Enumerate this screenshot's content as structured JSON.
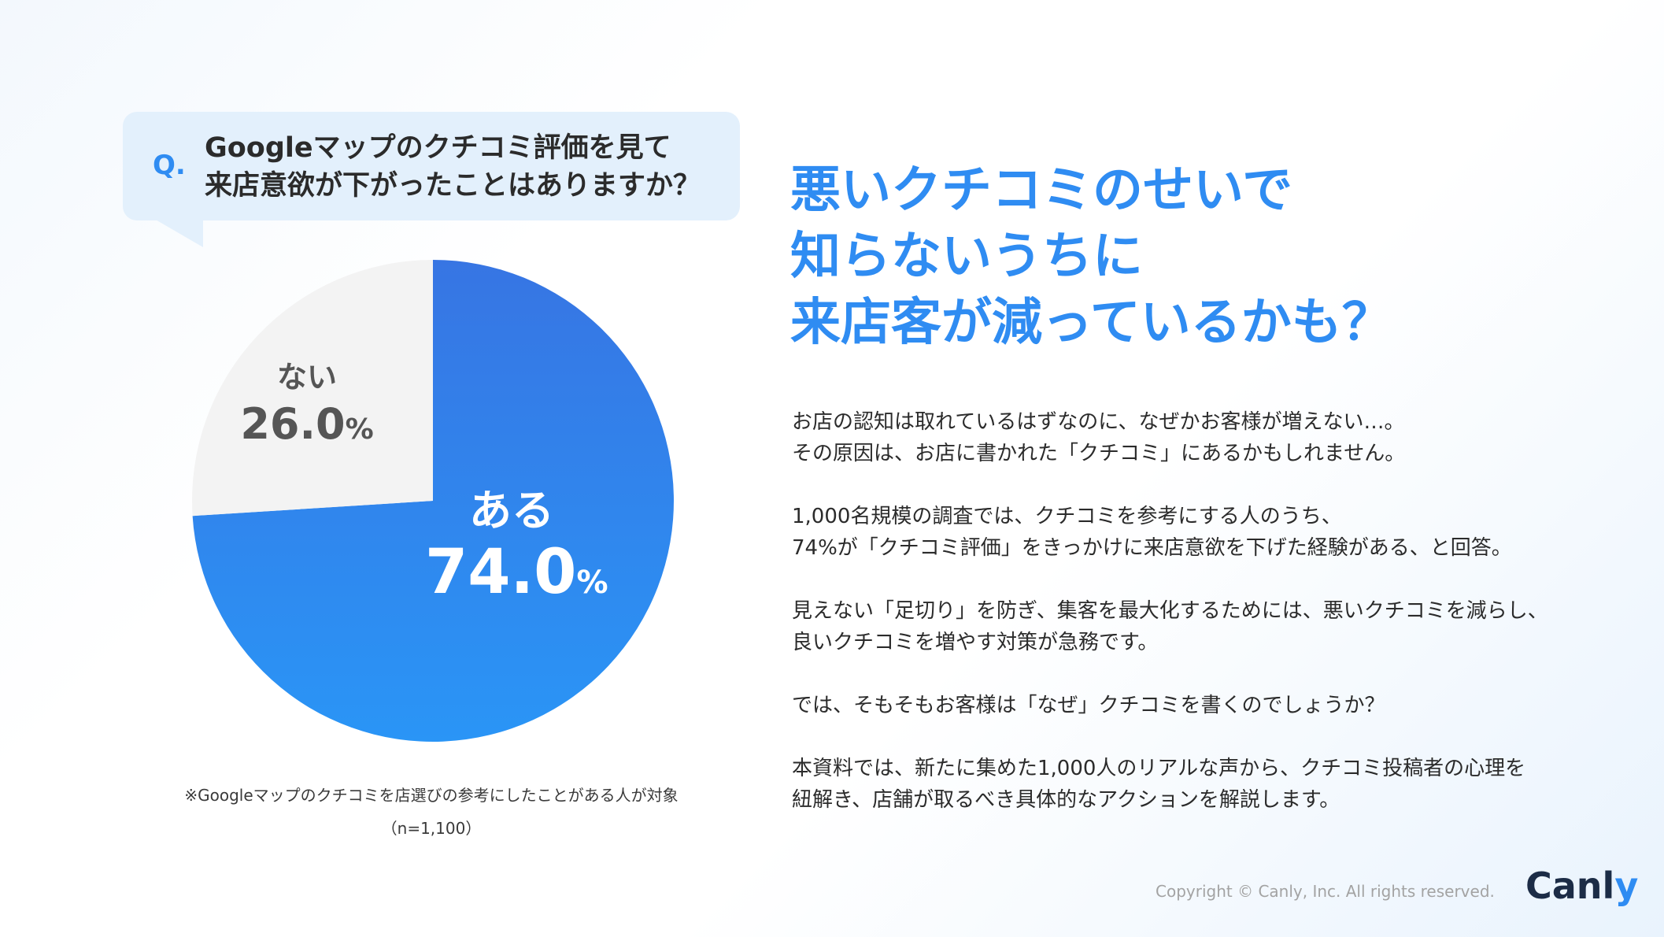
{
  "question": {
    "prefix": "Q.",
    "line1": "Googleマップのクチコミ評価を見て",
    "line2": "来店意欲が下がったことはありますか？"
  },
  "chart_data": {
    "type": "pie",
    "categories": [
      "ある",
      "ない"
    ],
    "values": [
      74.0,
      26.0
    ],
    "value_labels": [
      "74.0",
      "26.0"
    ],
    "unit": "%",
    "colors": [
      "#2f8cf2",
      "#f3f3f3"
    ]
  },
  "note": {
    "line1": "※Googleマップのクチコミを店選びの参考にしたことがある人が対象",
    "line2": "（n=1,100）"
  },
  "headline": {
    "line1": "悪いクチコミのせいで",
    "line2": "知らないうちに",
    "line3": "来店客が減っているかも？"
  },
  "body": {
    "p1_l1": "お店の認知は取れているはずなのに、なぜかお客様が増えない…。",
    "p1_l2": "その原因は、お店に書かれた「クチコミ」にあるかもしれません。",
    "p2_l1": "1,000名規模の調査では、クチコミを参考にする人のうち、",
    "p2_l2": "74%が「クチコミ評価」をきっかけに来店意欲を下げた経験がある、と回答。",
    "p3_l1": "見えない「足切り」を防ぎ、集客を最大化するためには、悪いクチコミを減らし、",
    "p3_l2": "良いクチコミを増やす対策が急務です。",
    "p4_l1": "では、そもそもお客様は「なぜ」クチコミを書くのでしょうか？",
    "p5_l1": "本資料では、新たに集めた1,000人のリアルな声から、クチコミ投稿者の心理を",
    "p5_l2": "紐解き、店舗が取るべき具体的なアクションを解説します。"
  },
  "footer": {
    "copyright": "Copyright © Canly, Inc. All rights reserved.",
    "logo_main": "Canl",
    "logo_accent": "y"
  }
}
